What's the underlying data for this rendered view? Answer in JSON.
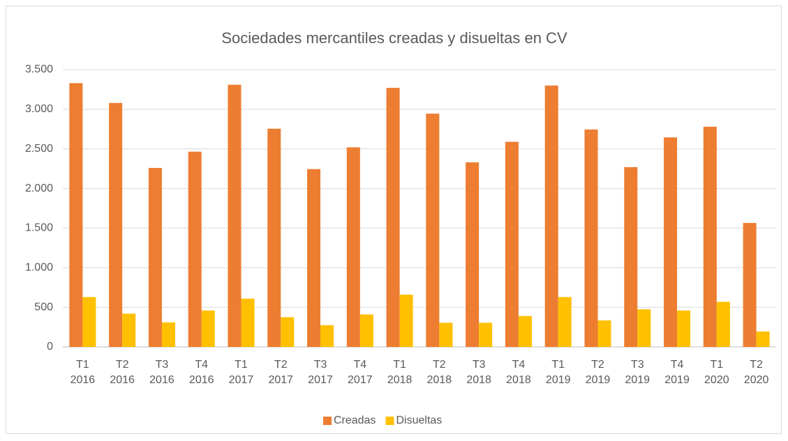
{
  "chart_data": {
    "type": "bar",
    "title": "Sociedades mercantiles creadas y disueltas en CV",
    "categories": [
      "T1 2016",
      "T2 2016",
      "T3 2016",
      "T4 2016",
      "T1 2017",
      "T2 2017",
      "T3 2017",
      "T4 2017",
      "T1 2018",
      "T2 2018",
      "T3 2018",
      "T4 2018",
      "T1 2019",
      "T2 2019",
      "T3 2019",
      "T4 2019",
      "T1 2020",
      "T2 2020"
    ],
    "series": [
      {
        "name": "Creadas",
        "color": "#ed7d31",
        "values": [
          3330,
          3080,
          2260,
          2465,
          3310,
          2755,
          2245,
          2520,
          3270,
          2945,
          2330,
          2590,
          3300,
          2745,
          2270,
          2645,
          2780,
          1565
        ]
      },
      {
        "name": "Disueltas",
        "color": "#ffc000",
        "values": [
          630,
          420,
          310,
          460,
          610,
          375,
          275,
          410,
          660,
          305,
          305,
          390,
          630,
          335,
          475,
          460,
          570,
          195
        ]
      }
    ],
    "ylim": [
      0,
      3500
    ],
    "yticks": [
      0,
      500,
      {
        "value": 1000,
        "label": "1.000"
      },
      {
        "value": 1500,
        "label": "1.500"
      },
      {
        "value": 2000,
        "label": "2.000"
      },
      {
        "value": 2500,
        "label": "2.500"
      },
      {
        "value": 3000,
        "label": "3.000"
      },
      {
        "value": 3500,
        "label": "3.500"
      }
    ],
    "grid": true,
    "legend": "bottom"
  }
}
